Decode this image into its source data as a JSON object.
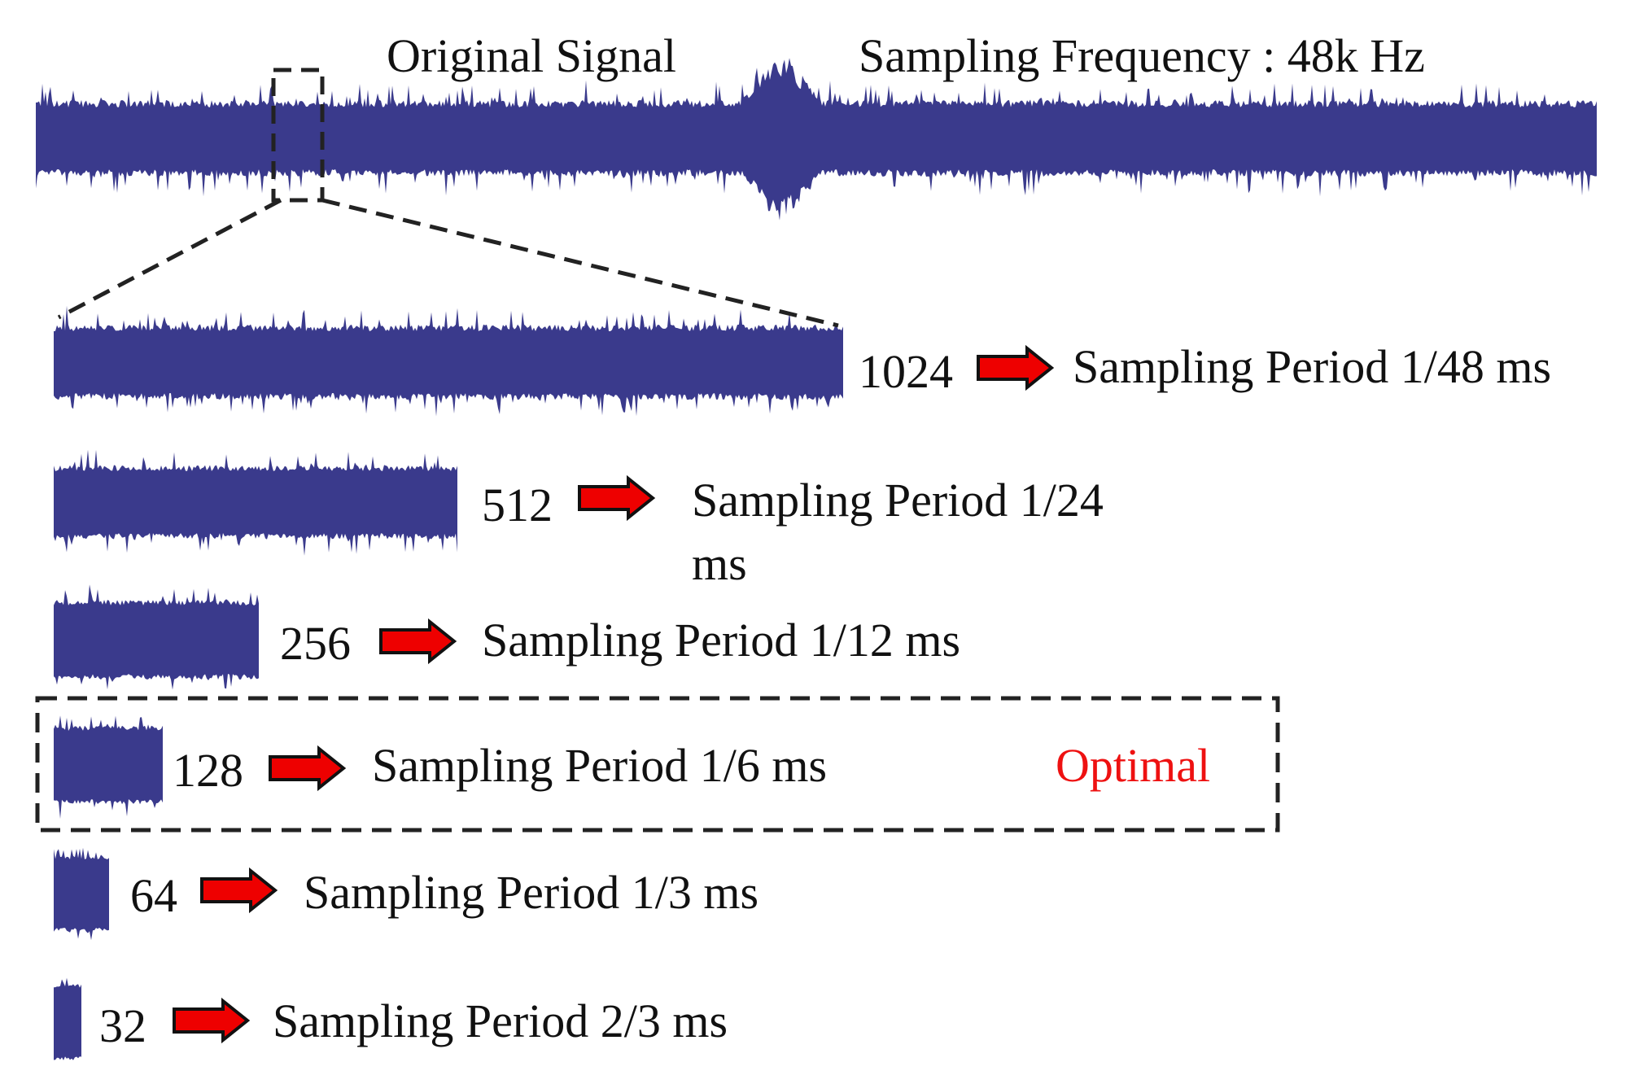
{
  "header": {
    "title": "Original Signal",
    "frequency": "Sampling Frequency : 48k Hz"
  },
  "colors": {
    "waveform": "#3a3a8c",
    "arrow_fill": "#ee0000",
    "arrow_stroke": "#111111",
    "dash": "#222222",
    "optimal_text": "#ee1111"
  },
  "rows": [
    {
      "size": "1024",
      "period": "Sampling Period 1/48 ms"
    },
    {
      "size": "512",
      "period_line1": "Sampling Period 1/24",
      "period_line2": "ms"
    },
    {
      "size": "256",
      "period": "Sampling Period 1/12 ms"
    },
    {
      "size": "128",
      "period": "Sampling Period 1/6 ms",
      "badge": "Optimal"
    },
    {
      "size": "64",
      "period": "Sampling Period 1/3 ms"
    },
    {
      "size": "32",
      "period": "Sampling Period 2/3 ms"
    }
  ]
}
